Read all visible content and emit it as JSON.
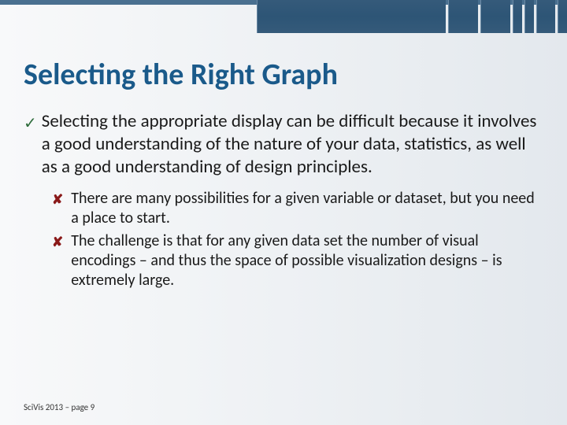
{
  "slide": {
    "title": "Selecting the Right Graph",
    "main_bullet": {
      "icon": "checkmark-icon",
      "text": "Selecting the appropriate display can be difficult because it involves a good understanding of the nature of your data, statistics, as well as a good understanding of design principles."
    },
    "sub_bullets": [
      {
        "icon": "x-icon",
        "text": "There are many possibilities for a given variable or dataset, but you need a place to start."
      },
      {
        "icon": "x-icon",
        "text": "The challenge is that for any given data set the number of visual encodings – and thus the space of possible visualization designs – is extremely large."
      }
    ],
    "footer": "SciVis 2013 – page 9"
  },
  "styling": {
    "title_color": "#1a5a8a",
    "title_fontsize": 38,
    "main_fontsize": 23,
    "sub_fontsize": 20,
    "check_color": "#2d6b3a",
    "x_color": "#8a1a1a",
    "bar_color": "#355a7a",
    "background_gradient": [
      "#f8f9fa",
      "#eef1f4",
      "#e3e8ed"
    ],
    "footer_fontsize": 11
  }
}
